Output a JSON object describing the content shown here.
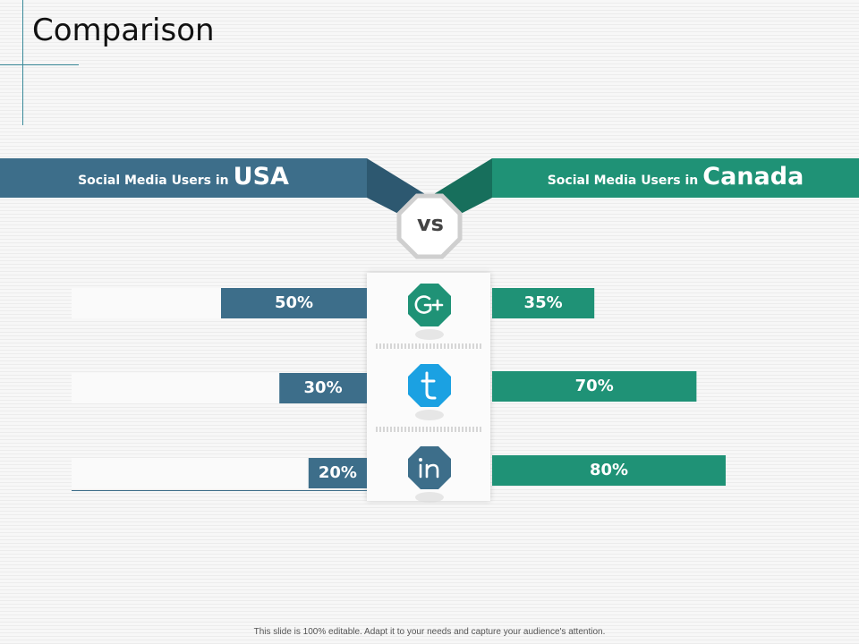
{
  "slide": {
    "title": "Comparison",
    "footer": "This slide is 100% editable. Adapt it to your needs and capture your audience's attention."
  },
  "left_banner": {
    "prefix": "Social Media Users in",
    "country": "USA"
  },
  "right_banner": {
    "prefix": "Social Media Users in",
    "country": "Canada"
  },
  "vs_label": "vs",
  "colors": {
    "usa": "#3d6e8a",
    "canada": "#1f9276",
    "google": "#1f9276",
    "tumblr": "#1ba1e2",
    "linkedin": "#3d6e8a"
  },
  "chart_data": {
    "type": "bar",
    "title": "Comparison",
    "categories": [
      "Google+",
      "Tumblr",
      "LinkedIn"
    ],
    "unit": "%",
    "series": [
      {
        "name": "Social Media Users in USA",
        "values": [
          50,
          30,
          20
        ],
        "labels": [
          "50%",
          "30%",
          "20%"
        ]
      },
      {
        "name": "Social Media Users in Canada",
        "values": [
          35,
          70,
          80
        ],
        "labels": [
          "35%",
          "70%",
          "80%"
        ]
      }
    ],
    "icons": [
      "google-plus-icon",
      "tumblr-icon",
      "linkedin-icon"
    ],
    "ylim": [
      0,
      100
    ]
  }
}
